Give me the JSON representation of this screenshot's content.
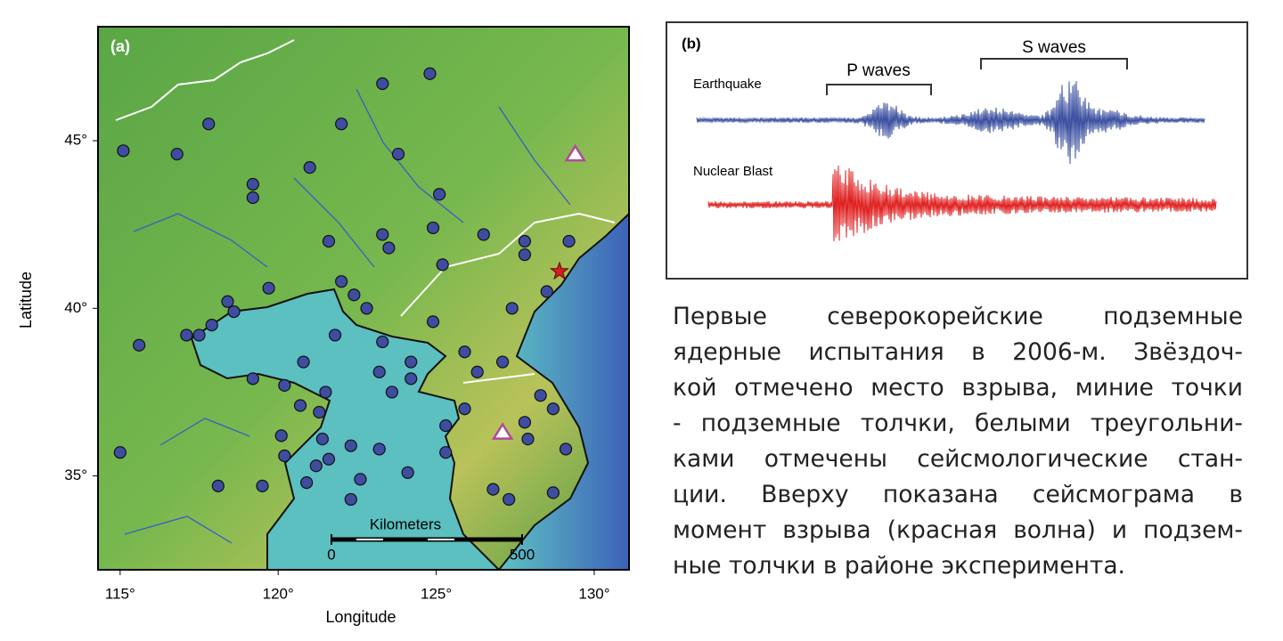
{
  "map": {
    "panel_label": "(a)",
    "x_label": "Longitude",
    "y_label": "Latitude",
    "xlim": [
      114.3,
      131.1
    ],
    "ylim": [
      32.2,
      48.4
    ],
    "xticks": [
      {
        "value": 115,
        "label": "115°"
      },
      {
        "value": 120,
        "label": "120°"
      },
      {
        "value": 125,
        "label": "125°"
      },
      {
        "value": 130,
        "label": "130°"
      }
    ],
    "yticks": [
      {
        "value": 35,
        "label": "35°"
      },
      {
        "value": 40,
        "label": "40°"
      },
      {
        "value": 45,
        "label": "45°"
      }
    ],
    "scale_bar": {
      "title": "Kilometers",
      "ticks": [
        0,
        500
      ]
    },
    "explosion": [
      128.9,
      41.1
    ],
    "stations": [
      [
        129.4,
        44.6
      ],
      [
        127.1,
        36.3
      ]
    ],
    "epicenters": [
      [
        124.8,
        47.0
      ],
      [
        123.3,
        46.7
      ],
      [
        117.8,
        45.5
      ],
      [
        122.0,
        45.5
      ],
      [
        115.1,
        44.7
      ],
      [
        116.8,
        44.6
      ],
      [
        123.8,
        44.6
      ],
      [
        121.0,
        44.2
      ],
      [
        119.2,
        43.7
      ],
      [
        119.2,
        43.3
      ],
      [
        125.1,
        43.4
      ],
      [
        123.3,
        42.2
      ],
      [
        124.9,
        42.4
      ],
      [
        126.5,
        42.2
      ],
      [
        121.6,
        42.0
      ],
      [
        123.5,
        41.8
      ],
      [
        127.8,
        42.0
      ],
      [
        129.2,
        42.0
      ],
      [
        127.8,
        41.6
      ],
      [
        125.2,
        41.3
      ],
      [
        119.7,
        40.6
      ],
      [
        122.0,
        40.8
      ],
      [
        122.4,
        40.4
      ],
      [
        122.8,
        40.0
      ],
      [
        118.4,
        40.2
      ],
      [
        118.6,
        39.9
      ],
      [
        117.9,
        39.5
      ],
      [
        117.1,
        39.2
      ],
      [
        117.5,
        39.2
      ],
      [
        115.6,
        38.9
      ],
      [
        127.4,
        40.0
      ],
      [
        128.5,
        40.5
      ],
      [
        124.9,
        39.6
      ],
      [
        121.8,
        39.2
      ],
      [
        123.3,
        39.0
      ],
      [
        120.8,
        38.4
      ],
      [
        123.2,
        38.1
      ],
      [
        124.2,
        38.4
      ],
      [
        125.9,
        38.7
      ],
      [
        126.3,
        38.1
      ],
      [
        127.1,
        38.4
      ],
      [
        119.2,
        37.9
      ],
      [
        120.2,
        37.7
      ],
      [
        121.5,
        37.5
      ],
      [
        123.6,
        37.5
      ],
      [
        124.2,
        37.9
      ],
      [
        128.3,
        37.4
      ],
      [
        128.7,
        37.0
      ],
      [
        120.7,
        37.1
      ],
      [
        121.3,
        36.9
      ],
      [
        125.9,
        37.0
      ],
      [
        127.8,
        36.6
      ],
      [
        120.1,
        36.2
      ],
      [
        121.4,
        36.1
      ],
      [
        125.3,
        36.5
      ],
      [
        115.0,
        35.7
      ],
      [
        120.2,
        35.6
      ],
      [
        121.6,
        35.5
      ],
      [
        122.3,
        35.9
      ],
      [
        123.2,
        35.8
      ],
      [
        121.2,
        35.3
      ],
      [
        124.1,
        35.1
      ],
      [
        125.3,
        35.7
      ],
      [
        127.9,
        36.1
      ],
      [
        129.1,
        35.8
      ],
      [
        122.6,
        34.9
      ],
      [
        120.9,
        34.8
      ],
      [
        119.5,
        34.7
      ],
      [
        118.1,
        34.7
      ],
      [
        122.3,
        34.3
      ],
      [
        126.8,
        34.6
      ],
      [
        127.3,
        34.3
      ],
      [
        128.7,
        34.5
      ]
    ]
  },
  "seismogram": {
    "panel_label": "(b)",
    "p_waves": "P waves",
    "s_waves": "S waves",
    "earthquake": "Earthquake",
    "nuclear_blast": "Nuclear Blast"
  },
  "caption": {
    "lines": [
      "Первые северокорейские подземные",
      "ядерные испытания в 2006-м. Звёздоч-",
      "кой отмечено место взрыва, миние точки",
      "- подземные толчки, белыми треугольни-",
      "ками отмечены сейсмологические стан-",
      "ции. Вверху показана сейсмограма в",
      "момент взрыва (красная волна) и подзем-",
      "ные толчки в районе эксперимента."
    ]
  }
}
